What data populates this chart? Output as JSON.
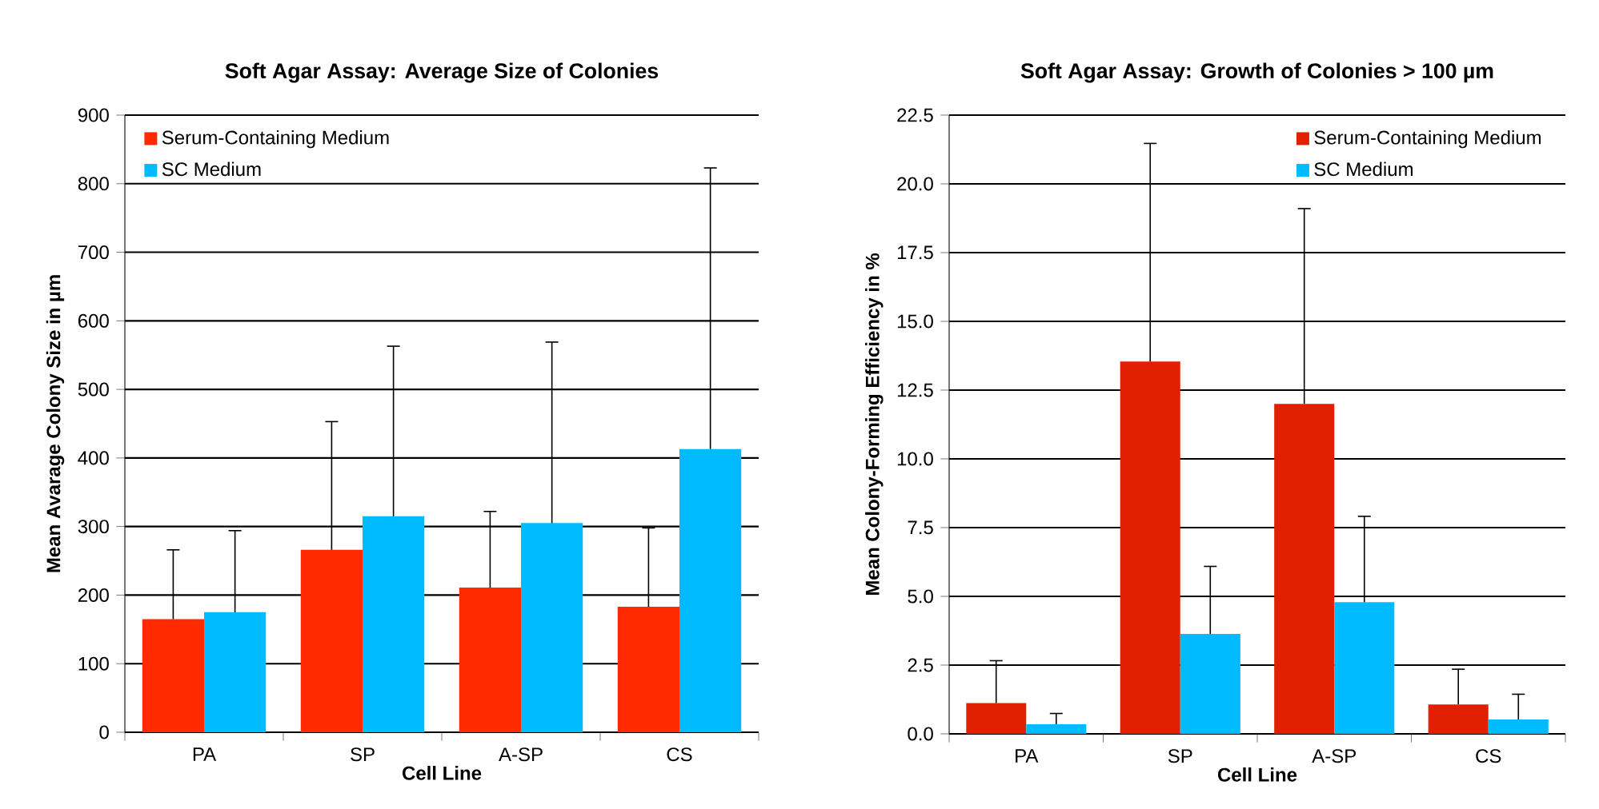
{
  "chart_data": [
    {
      "type": "bar",
      "title": "Soft Agar Assay: Average Size of Colonies",
      "xlabel": "Cell Line",
      "ylabel": "Mean Avarage Colony Size in µm",
      "categories": [
        "PA",
        "SP",
        "A-SP",
        "CS"
      ],
      "series": [
        {
          "name": "Serum-Containing Medium",
          "color": "#ff2a00",
          "values": [
            165,
            266,
            211,
            183
          ],
          "errors": [
            [
              165,
              266
            ],
            [
              266,
              453
            ],
            [
              211,
              322
            ],
            [
              183,
              298
            ]
          ]
        },
        {
          "name": "SC Medium",
          "color": "#00bbff",
          "values": [
            175,
            315,
            305,
            413
          ],
          "errors": [
            [
              175,
              294
            ],
            [
              315,
              563
            ],
            [
              305,
              569
            ],
            [
              413,
              823
            ]
          ]
        }
      ],
      "ylim": [
        0,
        900
      ],
      "yticks": [
        0,
        100,
        200,
        300,
        400,
        500,
        600,
        700,
        800,
        900
      ],
      "grid": "y",
      "legend": "top left"
    },
    {
      "type": "bar",
      "title": "Soft Agar Assay: Growth of Colonies > 100 µm",
      "xlabel": "Cell Line",
      "ylabel": "Mean Colony-Forming Efficiency in %",
      "categories": [
        "PA",
        "SP",
        "A-SP",
        "CS"
      ],
      "series": [
        {
          "name": "Serum-Containing Medium",
          "color": "#e02000",
          "values": [
            1.12,
            13.54,
            12.0,
            1.07
          ],
          "errors": [
            [
              1.12,
              2.66
            ],
            [
              13.54,
              21.47
            ],
            [
              12.0,
              19.1
            ],
            [
              1.07,
              2.35
            ]
          ]
        },
        {
          "name": "SC Medium",
          "color": "#00bbff",
          "values": [
            0.35,
            3.63,
            4.79,
            0.52
          ],
          "errors": [
            [
              0.35,
              0.74
            ],
            [
              3.63,
              6.09
            ],
            [
              4.79,
              7.91
            ],
            [
              0.52,
              1.44
            ]
          ]
        }
      ],
      "ylim": [
        0,
        22.5
      ],
      "yticks": [
        {
          "value": 0,
          "label": "0.0"
        },
        {
          "value": 2.5,
          "label": "2.5"
        },
        {
          "value": 5,
          "label": "5.0"
        },
        {
          "value": 7.5,
          "label": "7.5"
        },
        {
          "value": 10,
          "label": "10.0"
        },
        {
          "value": 12.5,
          "label": "12.5"
        },
        {
          "value": 15,
          "label": "15.0"
        },
        {
          "value": 17.5,
          "label": "17.5"
        },
        {
          "value": 20,
          "label": "20.0"
        },
        {
          "value": 22.5,
          "label": "22.5"
        }
      ],
      "grid": "y",
      "legend": "top right"
    }
  ]
}
